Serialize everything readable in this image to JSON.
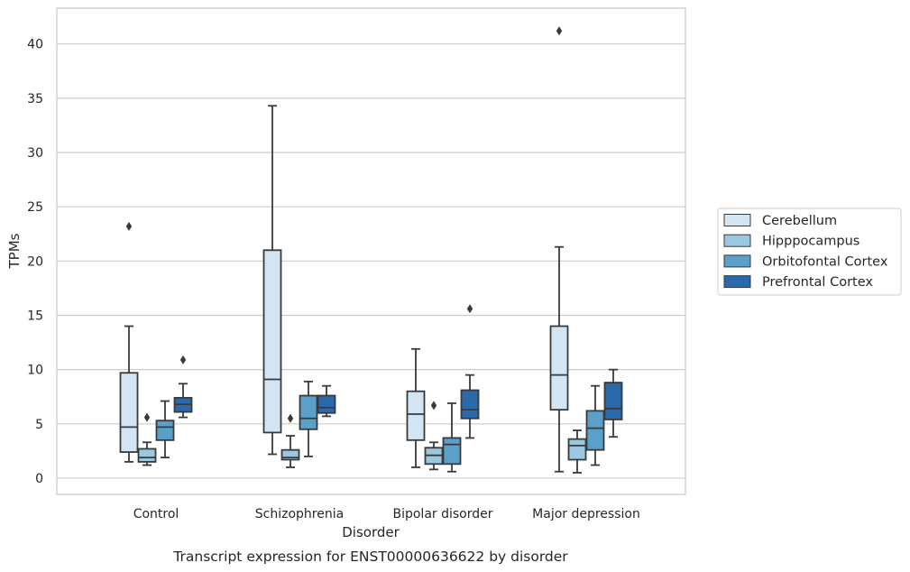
{
  "chart_data": {
    "type": "box",
    "caption": "Transcript expression for ENST00000636622 by disorder",
    "xlabel": "Disorder",
    "ylabel": "TPMs",
    "ylim": [
      -1.5,
      43.3
    ],
    "yticks": [
      0,
      5,
      10,
      15,
      20,
      25,
      30,
      35,
      40
    ],
    "grid": "horizontal",
    "legend_position": "right",
    "categories": [
      "Control",
      "Schizophrenia",
      "Bipolar disorder",
      "Major depression"
    ],
    "series": [
      {
        "name": "Cerebellum",
        "color": "#d3e4f3",
        "boxes": [
          {
            "whisker_low": 1.5,
            "q1": 2.4,
            "median": 4.7,
            "q3": 9.7,
            "whisker_high": 14.0,
            "outliers": [
              23.2
            ]
          },
          {
            "whisker_low": 2.2,
            "q1": 4.2,
            "median": 9.1,
            "q3": 21.0,
            "whisker_high": 34.3,
            "outliers": []
          },
          {
            "whisker_low": 1.0,
            "q1": 3.5,
            "median": 5.9,
            "q3": 8.0,
            "whisker_high": 11.9,
            "outliers": []
          },
          {
            "whisker_low": 0.6,
            "q1": 6.3,
            "median": 9.5,
            "q3": 14.0,
            "whisker_high": 21.3,
            "outliers": [
              41.2
            ]
          }
        ]
      },
      {
        "name": "Hipppocampus",
        "color": "#9ac8e0",
        "boxes": [
          {
            "whisker_low": 1.2,
            "q1": 1.5,
            "median": 1.9,
            "q3": 2.7,
            "whisker_high": 3.3,
            "outliers": [
              5.6
            ]
          },
          {
            "whisker_low": 1.0,
            "q1": 1.7,
            "median": 1.9,
            "q3": 2.6,
            "whisker_high": 3.9,
            "outliers": [
              5.5
            ]
          },
          {
            "whisker_low": 0.8,
            "q1": 1.3,
            "median": 2.1,
            "q3": 2.8,
            "whisker_high": 3.3,
            "outliers": [
              6.7
            ]
          },
          {
            "whisker_low": 0.5,
            "q1": 1.7,
            "median": 3.0,
            "q3": 3.6,
            "whisker_high": 4.4,
            "outliers": []
          }
        ]
      },
      {
        "name": "Orbitofontal Cortex",
        "color": "#5b9fcb",
        "boxes": [
          {
            "whisker_low": 1.9,
            "q1": 3.5,
            "median": 4.7,
            "q3": 5.3,
            "whisker_high": 7.1,
            "outliers": []
          },
          {
            "whisker_low": 2.0,
            "q1": 4.5,
            "median": 5.5,
            "q3": 7.6,
            "whisker_high": 8.9,
            "outliers": []
          },
          {
            "whisker_low": 0.6,
            "q1": 1.3,
            "median": 3.1,
            "q3": 3.7,
            "whisker_high": 6.9,
            "outliers": []
          },
          {
            "whisker_low": 1.2,
            "q1": 2.6,
            "median": 4.6,
            "q3": 6.2,
            "whisker_high": 8.5,
            "outliers": []
          }
        ]
      },
      {
        "name": "Prefrontal Cortex",
        "color": "#2a6aab",
        "boxes": [
          {
            "whisker_low": 5.6,
            "q1": 6.1,
            "median": 6.8,
            "q3": 7.4,
            "whisker_high": 8.7,
            "outliers": [
              10.9
            ]
          },
          {
            "whisker_low": 5.7,
            "q1": 6.0,
            "median": 6.5,
            "q3": 7.6,
            "whisker_high": 8.5,
            "outliers": []
          },
          {
            "whisker_low": 3.7,
            "q1": 5.5,
            "median": 6.3,
            "q3": 8.1,
            "whisker_high": 9.5,
            "outliers": [
              15.6
            ]
          },
          {
            "whisker_low": 3.8,
            "q1": 5.4,
            "median": 6.4,
            "q3": 8.8,
            "whisker_high": 10.0,
            "outliers": []
          }
        ]
      }
    ]
  }
}
